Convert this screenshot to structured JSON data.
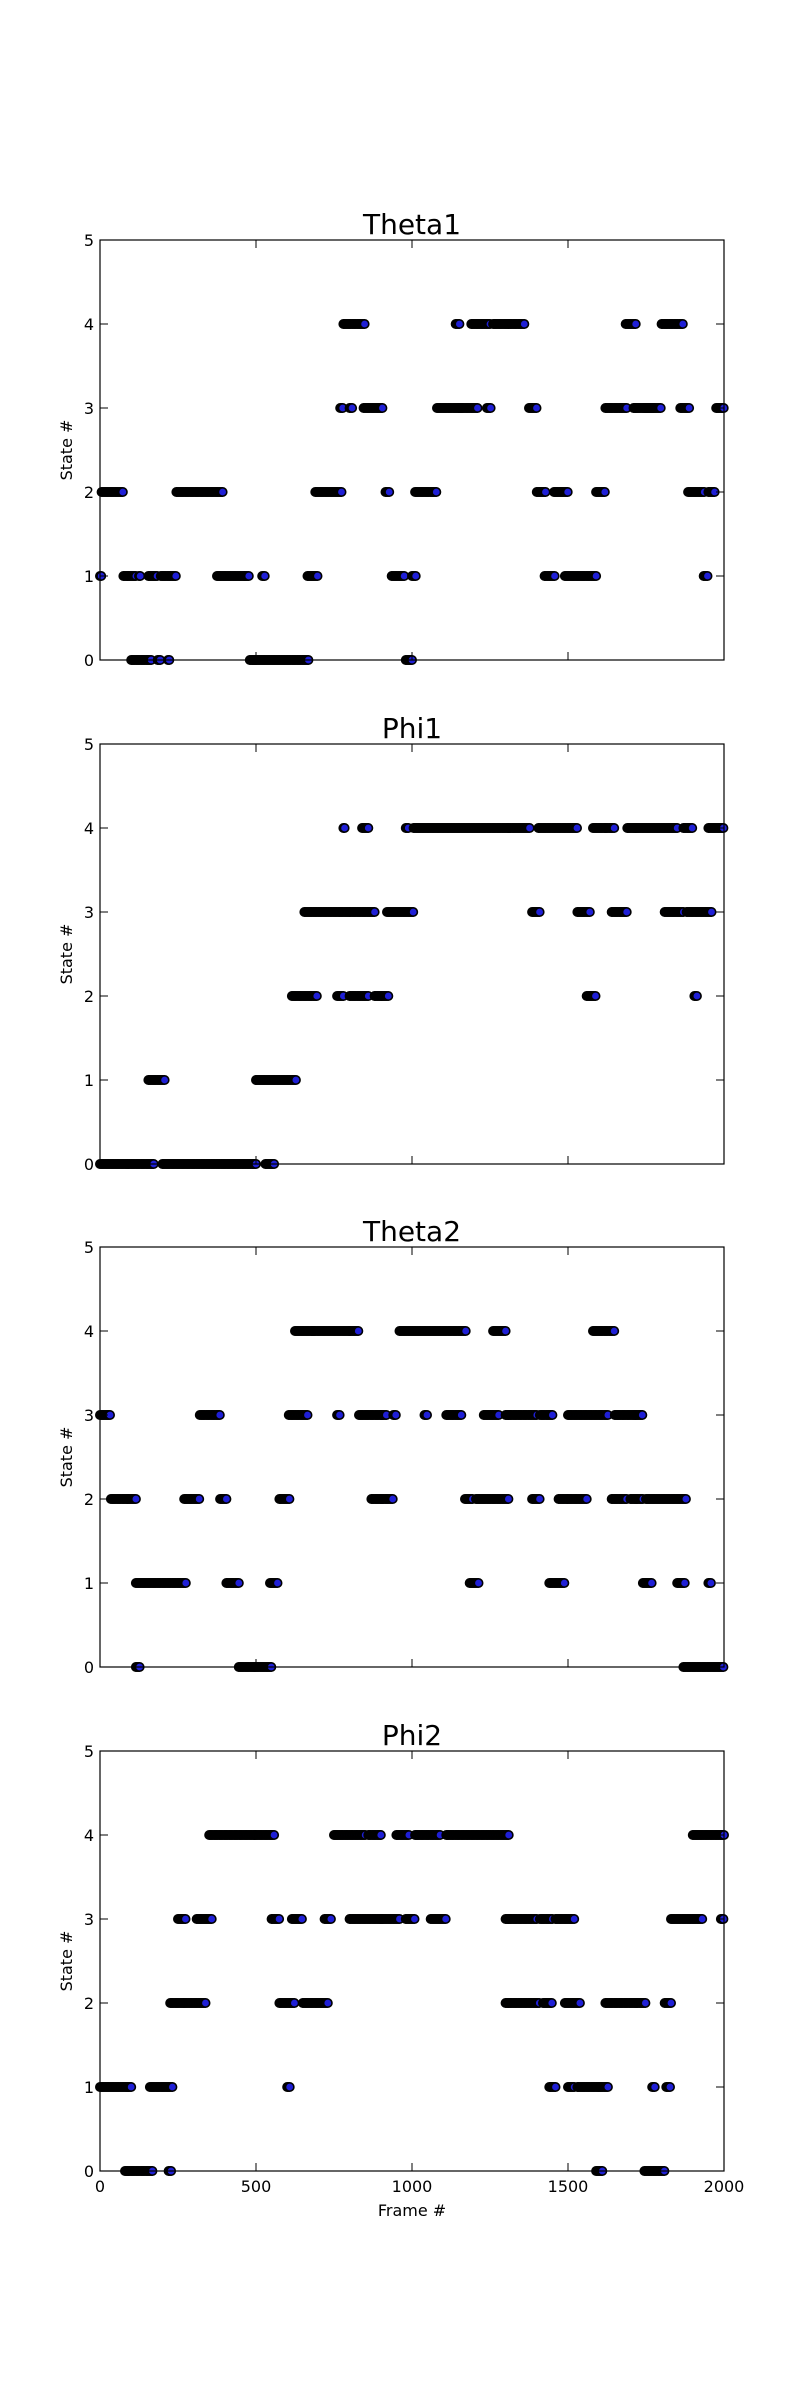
{
  "chart_data": [
    {
      "type": "scatter",
      "title": "Theta1",
      "xlabel": "",
      "ylabel": "State #",
      "xlim": [
        0,
        2000
      ],
      "ylim": [
        0,
        5
      ],
      "yticks": [
        0,
        1,
        2,
        3,
        4,
        5
      ],
      "xticks": [
        0,
        500,
        1000,
        1500,
        2000
      ],
      "series": [
        {
          "runs": [
            [
              0,
              5,
              1
            ],
            [
              5,
              75,
              2
            ],
            [
              75,
              115,
              1
            ],
            [
              100,
              165,
              0
            ],
            [
              125,
              130,
              1
            ],
            [
              155,
              185,
              1
            ],
            [
              185,
              195,
              0
            ],
            [
              195,
              245,
              1
            ],
            [
              218,
              222,
              0
            ],
            [
              245,
              395,
              2
            ],
            [
              375,
              465,
              1
            ],
            [
              465,
              480,
              1
            ],
            [
              480,
              670,
              0
            ],
            [
              520,
              530,
              1
            ],
            [
              665,
              700,
              1
            ],
            [
              690,
              775,
              2
            ],
            [
              770,
              780,
              3
            ],
            [
              780,
              850,
              4
            ],
            [
              800,
              810,
              3
            ],
            [
              845,
              905,
              3
            ],
            [
              915,
              930,
              2
            ],
            [
              935,
              975,
              1
            ],
            [
              980,
              1000,
              0
            ],
            [
              1000,
              1015,
              1
            ],
            [
              1010,
              1080,
              2
            ],
            [
              1080,
              1160,
              3
            ],
            [
              1140,
              1155,
              4
            ],
            [
              1150,
              1210,
              3
            ],
            [
              1190,
              1250,
              4
            ],
            [
              1240,
              1255,
              3
            ],
            [
              1260,
              1360,
              4
            ],
            [
              1375,
              1400,
              3
            ],
            [
              1400,
              1430,
              2
            ],
            [
              1425,
              1460,
              1
            ],
            [
              1455,
              1500,
              2
            ],
            [
              1490,
              1590,
              1
            ],
            [
              1590,
              1620,
              2
            ],
            [
              1620,
              1690,
              3
            ],
            [
              1685,
              1720,
              4
            ],
            [
              1710,
              1775,
              3
            ],
            [
              1745,
              1800,
              3
            ],
            [
              1800,
              1870,
              4
            ],
            [
              1860,
              1890,
              3
            ],
            [
              1885,
              1940,
              2
            ],
            [
              1935,
              1950,
              1
            ],
            [
              1950,
              1970,
              2
            ],
            [
              1975,
              2000,
              3
            ]
          ]
        }
      ]
    },
    {
      "type": "scatter",
      "title": "Phi1",
      "xlabel": "",
      "ylabel": "State #",
      "xlim": [
        0,
        2000
      ],
      "ylim": [
        0,
        5
      ],
      "yticks": [
        0,
        1,
        2,
        3,
        4,
        5
      ],
      "xticks": [
        0,
        500,
        1000,
        1500,
        2000
      ],
      "series": [
        {
          "runs": [
            [
              0,
              175,
              0
            ],
            [
              155,
              210,
              1
            ],
            [
              200,
              500,
              0
            ],
            [
              500,
              630,
              1
            ],
            [
              530,
              560,
              0
            ],
            [
              615,
              695,
              2
            ],
            [
              655,
              770,
              3
            ],
            [
              760,
              780,
              2
            ],
            [
              770,
              800,
              3
            ],
            [
              780,
              785,
              4
            ],
            [
              800,
              860,
              2
            ],
            [
              800,
              880,
              3
            ],
            [
              840,
              860,
              4
            ],
            [
              880,
              925,
              2
            ],
            [
              920,
              1005,
              3
            ],
            [
              980,
              990,
              4
            ],
            [
              1005,
              1380,
              4
            ],
            [
              1385,
              1410,
              3
            ],
            [
              1405,
              1530,
              4
            ],
            [
              1530,
              1570,
              3
            ],
            [
              1560,
              1590,
              2
            ],
            [
              1580,
              1620,
              4
            ],
            [
              1620,
              1650,
              4
            ],
            [
              1640,
              1690,
              3
            ],
            [
              1690,
              1850,
              4
            ],
            [
              1810,
              1870,
              3
            ],
            [
              1870,
              1900,
              4
            ],
            [
              1880,
              1960,
              3
            ],
            [
              1905,
              1915,
              2
            ],
            [
              1950,
              2000,
              4
            ]
          ]
        }
      ]
    },
    {
      "type": "scatter",
      "title": "Theta2",
      "xlabel": "",
      "ylabel": "State #",
      "xlim": [
        0,
        2000
      ],
      "ylim": [
        0,
        5
      ],
      "yticks": [
        0,
        1,
        2,
        3,
        4,
        5
      ],
      "xticks": [
        0,
        500,
        1000,
        1500,
        2000
      ],
      "series": [
        {
          "runs": [
            [
              0,
              35,
              3
            ],
            [
              35,
              115,
              2
            ],
            [
              115,
              130,
              0
            ],
            [
              115,
              275,
              1
            ],
            [
              270,
              320,
              2
            ],
            [
              320,
              385,
              3
            ],
            [
              385,
              405,
              2
            ],
            [
              405,
              445,
              1
            ],
            [
              445,
              550,
              0
            ],
            [
              545,
              570,
              1
            ],
            [
              575,
              610,
              2
            ],
            [
              605,
              665,
              3
            ],
            [
              625,
              685,
              4
            ],
            [
              680,
              800,
              4
            ],
            [
              760,
              770,
              3
            ],
            [
              800,
              830,
              4
            ],
            [
              830,
              920,
              3
            ],
            [
              870,
              940,
              2
            ],
            [
              940,
              950,
              3
            ],
            [
              960,
              1175,
              4
            ],
            [
              1040,
              1050,
              3
            ],
            [
              1110,
              1160,
              3
            ],
            [
              1170,
              1195,
              2
            ],
            [
              1185,
              1215,
              1
            ],
            [
              1205,
              1310,
              2
            ],
            [
              1230,
              1280,
              3
            ],
            [
              1260,
              1300,
              4
            ],
            [
              1300,
              1400,
              3
            ],
            [
              1385,
              1410,
              2
            ],
            [
              1410,
              1450,
              3
            ],
            [
              1440,
              1490,
              1
            ],
            [
              1470,
              1500,
              2
            ],
            [
              1500,
              1560,
              2
            ],
            [
              1500,
              1630,
              3
            ],
            [
              1580,
              1650,
              4
            ],
            [
              1640,
              1690,
              2
            ],
            [
              1650,
              1740,
              3
            ],
            [
              1700,
              1740,
              2
            ],
            [
              1740,
              1770,
              1
            ],
            [
              1750,
              1880,
              2
            ],
            [
              1850,
              1875,
              1
            ],
            [
              1870,
              2000,
              0
            ],
            [
              1950,
              1960,
              1
            ]
          ]
        }
      ]
    },
    {
      "type": "scatter",
      "title": "Phi2",
      "xlabel": "Frame #",
      "ylabel": "State #",
      "xlim": [
        0,
        2000
      ],
      "ylim": [
        0,
        5
      ],
      "yticks": [
        0,
        1,
        2,
        3,
        4,
        5
      ],
      "xticks": [
        0,
        500,
        1000,
        1500,
        2000
      ],
      "xticklabels": [
        "0",
        "500",
        "1000",
        "1500",
        "2000"
      ],
      "series": [
        {
          "runs": [
            [
              0,
              100,
              1
            ],
            [
              80,
              170,
              0
            ],
            [
              160,
              235,
              1
            ],
            [
              220,
              230,
              0
            ],
            [
              225,
              270,
              2
            ],
            [
              250,
              275,
              3
            ],
            [
              270,
              340,
              2
            ],
            [
              310,
              360,
              3
            ],
            [
              350,
              560,
              4
            ],
            [
              550,
              575,
              3
            ],
            [
              575,
              625,
              2
            ],
            [
              600,
              610,
              1
            ],
            [
              615,
              650,
              3
            ],
            [
              650,
              730,
              2
            ],
            [
              720,
              740,
              3
            ],
            [
              750,
              850,
              4
            ],
            [
              800,
              905,
              3
            ],
            [
              860,
              900,
              4
            ],
            [
              900,
              960,
              3
            ],
            [
              950,
              990,
              4
            ],
            [
              980,
              1010,
              3
            ],
            [
              1010,
              1090,
              4
            ],
            [
              1060,
              1110,
              3
            ],
            [
              1110,
              1310,
              4
            ],
            [
              1300,
              1400,
              3
            ],
            [
              1300,
              1410,
              2
            ],
            [
              1410,
              1450,
              3
            ],
            [
              1420,
              1450,
              2
            ],
            [
              1440,
              1460,
              1
            ],
            [
              1460,
              1520,
              3
            ],
            [
              1490,
              1540,
              2
            ],
            [
              1500,
              1520,
              1
            ],
            [
              1530,
              1600,
              1
            ],
            [
              1600,
              1630,
              1
            ],
            [
              1590,
              1610,
              0
            ],
            [
              1620,
              1750,
              2
            ],
            [
              1745,
              1810,
              0
            ],
            [
              1770,
              1780,
              1
            ],
            [
              1810,
              1830,
              2
            ],
            [
              1815,
              1830,
              1
            ],
            [
              1830,
              1930,
              3
            ],
            [
              1900,
              2000,
              4
            ],
            [
              1990,
              2000,
              3
            ]
          ]
        }
      ]
    }
  ]
}
